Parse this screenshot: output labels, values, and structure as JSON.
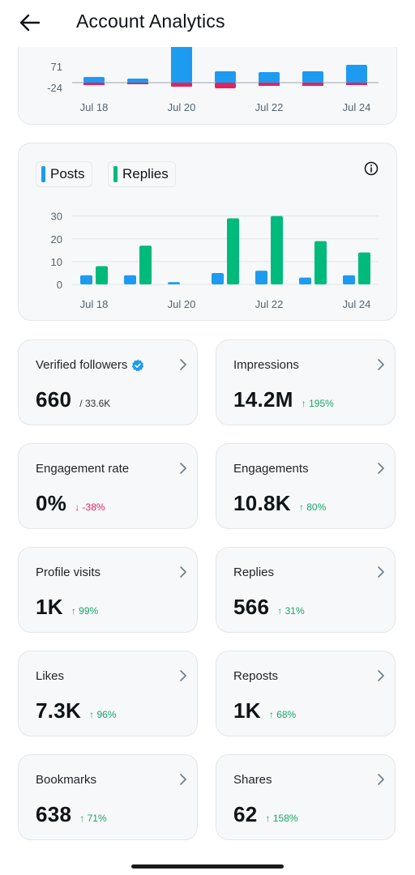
{
  "header": {
    "title": "Account Analytics"
  },
  "chart_top": {
    "type": "bar",
    "y_ticks": [
      "71",
      "-24"
    ],
    "x_ticks": [
      "Jul 18",
      "Jul 20",
      "Jul 22",
      "Jul 24"
    ]
  },
  "chart_data": {
    "type": "bar",
    "categories": [
      "Jul 18",
      "Jul 19",
      "Jul 20",
      "Jul 21",
      "Jul 22",
      "Jul 23",
      "Jul 24"
    ],
    "x_tick_labels": [
      "Jul 18",
      "Jul 20",
      "Jul 22",
      "Jul 24"
    ],
    "series": [
      {
        "name": "Posts",
        "color": "#1d9bf0",
        "values": [
          4,
          4,
          1,
          5,
          6,
          3,
          4
        ]
      },
      {
        "name": "Replies",
        "color": "#00ba7c",
        "values": [
          8,
          17,
          0,
          29,
          30,
          19,
          14
        ]
      }
    ],
    "y_ticks": [
      0,
      10,
      20,
      30
    ],
    "ylim": [
      0,
      32
    ],
    "grid": true,
    "legend": "top-left"
  },
  "legend": {
    "posts": "Posts",
    "replies": "Replies"
  },
  "stats": {
    "verified_followers": {
      "label": "Verified followers",
      "value": "660",
      "sub": "/ 33.6K"
    },
    "impressions": {
      "label": "Impressions",
      "value": "14.2M",
      "change": "↑ 195%"
    },
    "engagement_rate": {
      "label": "Engagement rate",
      "value": "0%",
      "change": "↓ -38%"
    },
    "engagements": {
      "label": "Engagements",
      "value": "10.8K",
      "change": "↑ 80%"
    },
    "profile_visits": {
      "label": "Profile visits",
      "value": "1K",
      "change": "↑ 99%"
    },
    "replies": {
      "label": "Replies",
      "value": "566",
      "change": "↑ 31%"
    },
    "likes": {
      "label": "Likes",
      "value": "7.3K",
      "change": "↑ 96%"
    },
    "reposts": {
      "label": "Reposts",
      "value": "1K",
      "change": "↑ 68%"
    },
    "bookmarks": {
      "label": "Bookmarks",
      "value": "638",
      "change": "↑ 71%"
    },
    "shares": {
      "label": "Shares",
      "value": "62",
      "change": "↑ 158%"
    }
  },
  "colors": {
    "posts": "#1d9bf0",
    "replies": "#00ba7c",
    "negative": "#e0245e",
    "positive": "#17a567",
    "verified": "#1d9bf0"
  }
}
